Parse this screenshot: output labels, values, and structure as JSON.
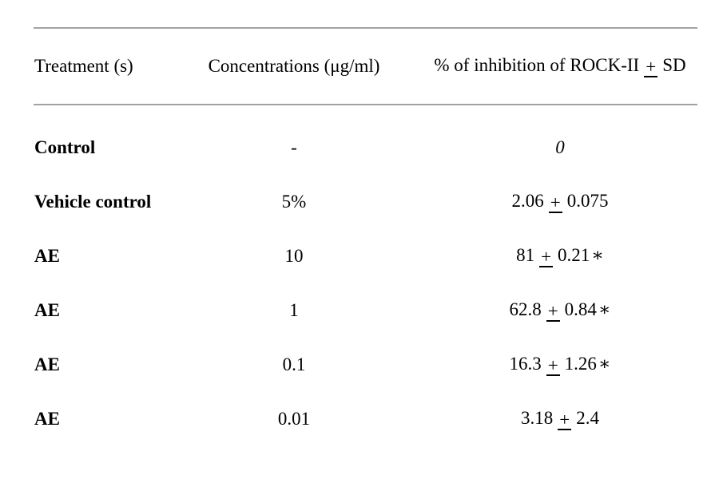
{
  "page": {
    "background_color": "#ffffff",
    "text_color": "#000000",
    "rule_color": "#a2a2a2"
  },
  "table": {
    "columns": [
      {
        "label": "Treatment (s)"
      },
      {
        "label": "Concentrations (μg/ml)"
      },
      {
        "label_main": "% of inhibition of ROCK-II",
        "pm": "+",
        "label_sd": "SD"
      }
    ],
    "rows": [
      {
        "treatment": "Control",
        "concentration": "-",
        "value": "0",
        "pm": "",
        "sd": "",
        "star": ""
      },
      {
        "treatment": "Vehicle control",
        "concentration": "5%",
        "value": "2.06",
        "pm": "+",
        "sd": "0.075",
        "star": ""
      },
      {
        "treatment": "AE",
        "concentration": "10",
        "value": "81",
        "pm": "+",
        "sd": "0.21",
        "star": "∗"
      },
      {
        "treatment": "AE",
        "concentration": "1",
        "value": "62.8",
        "pm": "+",
        "sd": "0.84",
        "star": "∗"
      },
      {
        "treatment": "AE",
        "concentration": "0.1",
        "value": "16.3",
        "pm": "+",
        "sd": "1.26",
        "star": "∗"
      },
      {
        "treatment": "AE",
        "concentration": "0.01",
        "value": "3.18",
        "pm": "+",
        "sd": "2.4",
        "star": ""
      }
    ]
  }
}
